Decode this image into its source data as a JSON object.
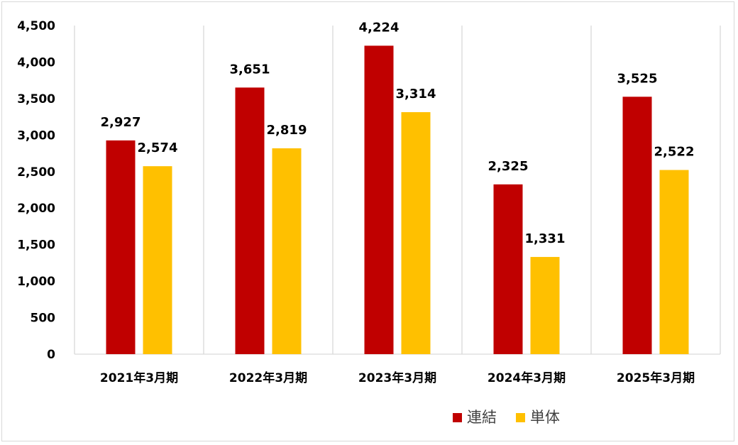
{
  "chart_data": {
    "type": "bar",
    "categories": [
      "2021年3月期",
      "2022年3月期",
      "2023年3月期",
      "2024年3月期",
      "2025年3月期"
    ],
    "series": [
      {
        "name": "連結",
        "values": [
          2927,
          3651,
          4224,
          2325,
          3525
        ],
        "color": "#c00000"
      },
      {
        "name": "単体",
        "values": [
          2574,
          2819,
          3314,
          1331,
          2522
        ],
        "color": "#ffc000"
      }
    ],
    "data_labels": [
      [
        "2,927",
        "3,651",
        "4,224",
        "2,325",
        "3,525"
      ],
      [
        "2,574",
        "2,819",
        "3,314",
        "1,331",
        "2,522"
      ]
    ],
    "yticks": [
      "0",
      "500",
      "1,000",
      "1,500",
      "2,000",
      "2,500",
      "3,000",
      "3,500",
      "4,000",
      "4,500"
    ],
    "ylim": [
      0,
      4500
    ],
    "grid": "vertical lines between categories",
    "legend": {
      "placement": "bottom-right",
      "items": [
        "連結",
        "単体"
      ]
    },
    "title": "",
    "xlabel": "",
    "ylabel": ""
  }
}
